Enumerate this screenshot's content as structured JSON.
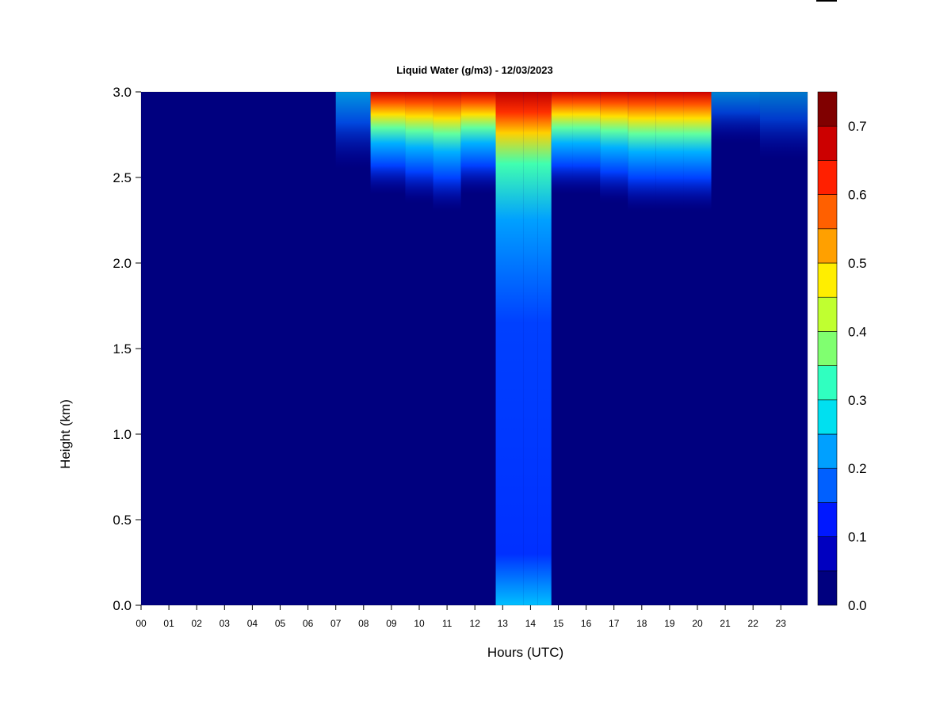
{
  "chart_data": {
    "type": "heatmap",
    "title": "Liquid Water (g/m3) - 12/03/2023",
    "xlabel": "Hours (UTC)",
    "ylabel": "Height (km)",
    "xlim": [
      0,
      24
    ],
    "ylim": [
      0,
      3.0
    ],
    "x_ticks": [
      "00",
      "01",
      "02",
      "03",
      "04",
      "05",
      "06",
      "07",
      "08",
      "09",
      "10",
      "11",
      "12",
      "13",
      "14",
      "15",
      "16",
      "17",
      "18",
      "19",
      "20",
      "21",
      "22",
      "23"
    ],
    "y_ticks": [
      "0.0",
      "0.5",
      "1.0",
      "1.5",
      "2.0",
      "2.5",
      "3.0"
    ],
    "colorbar": {
      "levels": [
        0.0,
        0.05,
        0.1,
        0.15,
        0.2,
        0.25,
        0.3,
        0.35,
        0.4,
        0.45,
        0.5,
        0.55,
        0.6,
        0.65,
        0.7,
        0.75
      ],
      "colors": [
        "#00007f",
        "#0000c0",
        "#0018ff",
        "#0060ff",
        "#00a0ff",
        "#00e0f0",
        "#30ffc0",
        "#80ff70",
        "#c0ff30",
        "#ffee00",
        "#ffa000",
        "#ff6000",
        "#ff2000",
        "#cc0000",
        "#800000"
      ],
      "tick_labels": [
        "0.0",
        "0.1",
        "0.2",
        "0.3",
        "0.4",
        "0.5",
        "0.6",
        "0.7"
      ]
    },
    "liquid_layer_top_km": 3.0,
    "cloud_base_km_by_hour": [
      {
        "hour": 7.5,
        "base_km": 2.55,
        "max_gm3": 0.3
      },
      {
        "hour": 9.0,
        "base_km": 2.4,
        "max_gm3": 0.55
      },
      {
        "hour": 10.0,
        "base_km": 2.35,
        "max_gm3": 0.7
      },
      {
        "hour": 11.0,
        "base_km": 2.3,
        "max_gm3": 0.7
      },
      {
        "hour": 12.0,
        "base_km": 2.4,
        "max_gm3": 0.7
      },
      {
        "hour": 13.5,
        "base_km": 0.0,
        "max_gm3": 0.75
      },
      {
        "hour": 14.0,
        "base_km": 0.0,
        "max_gm3": 0.75
      },
      {
        "hour": 14.5,
        "base_km": 0.0,
        "max_gm3": 0.7
      },
      {
        "hour": 15.0,
        "base_km": 2.4,
        "max_gm3": 0.55
      },
      {
        "hour": 16.0,
        "base_km": 2.4,
        "max_gm3": 0.6
      },
      {
        "hour": 17.0,
        "base_km": 2.35,
        "max_gm3": 0.65
      },
      {
        "hour": 18.0,
        "base_km": 2.3,
        "max_gm3": 0.7
      },
      {
        "hour": 19.0,
        "base_km": 2.3,
        "max_gm3": 0.7
      },
      {
        "hour": 20.0,
        "base_km": 2.3,
        "max_gm3": 0.7
      },
      {
        "hour": 21.0,
        "base_km": 2.7,
        "max_gm3": 0.2
      },
      {
        "hour": 23.5,
        "base_km": 2.6,
        "max_gm3": 0.15
      }
    ]
  }
}
